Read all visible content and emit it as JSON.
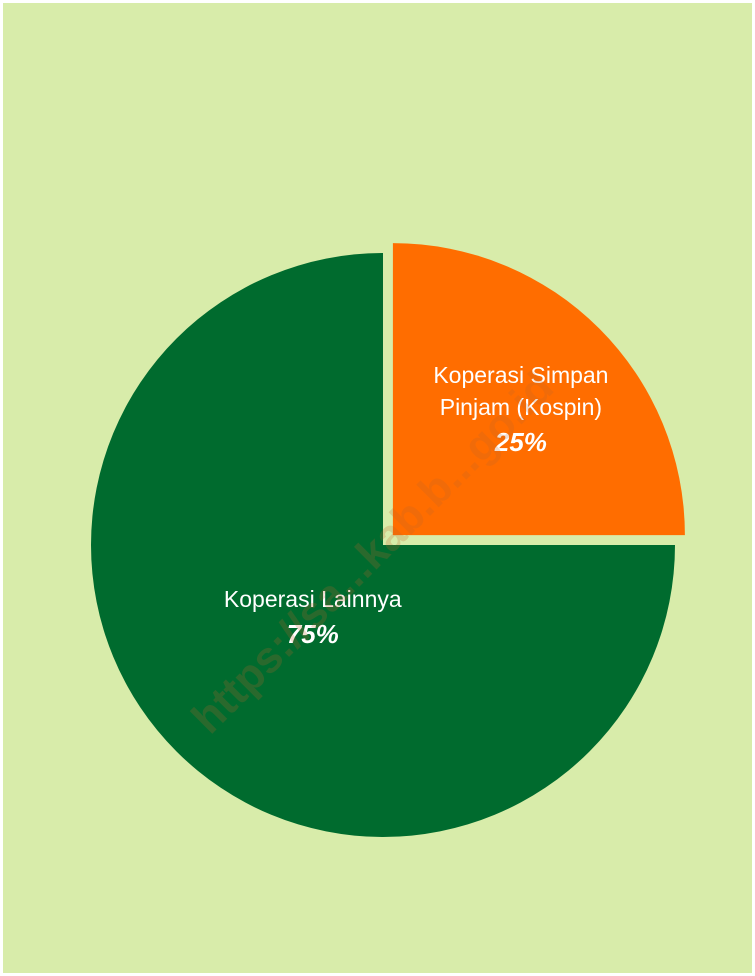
{
  "chart_data": {
    "type": "pie",
    "slices": [
      {
        "label_lines": [
          "Koperasi Simpan",
          "Pinjam (Kospin)"
        ],
        "percent_label": "25%",
        "value": 25,
        "color": "#ff6d00",
        "exploded": true
      },
      {
        "label_lines": [
          "Koperasi Lainnya"
        ],
        "percent_label": "75%",
        "value": 75,
        "color": "#006b2e",
        "exploded": false
      }
    ],
    "start": "12 o'clock, clockwise"
  },
  "background_color": "#d8ecaa",
  "watermark": "https://sa...kab.b...go.id"
}
